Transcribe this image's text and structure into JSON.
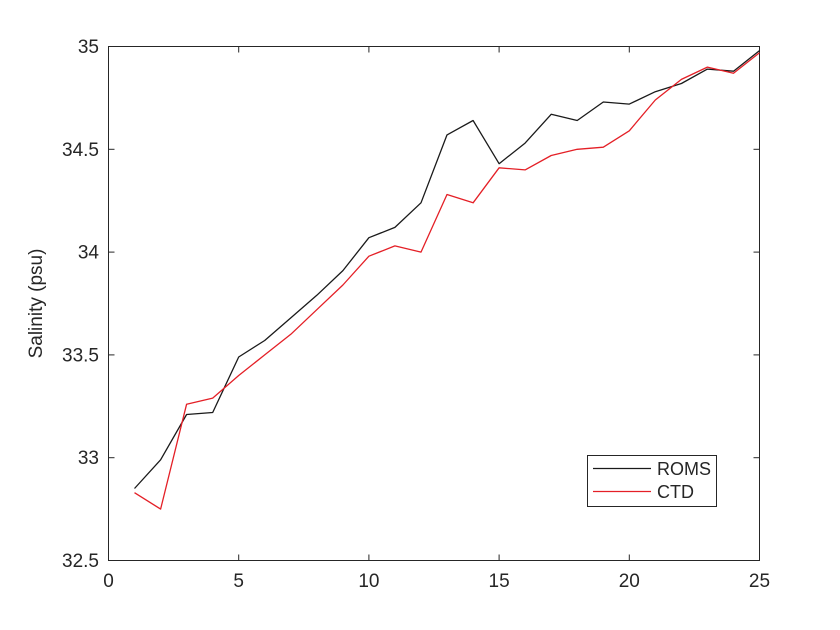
{
  "figure": {
    "background": "#ffffff"
  },
  "chart_data": {
    "type": "line",
    "title": "",
    "xlabel": "",
    "ylabel": "Salinity (psu)",
    "x": [
      1,
      2,
      3,
      4,
      5,
      6,
      7,
      8,
      9,
      10,
      11,
      12,
      13,
      14,
      15,
      16,
      17,
      18,
      19,
      20,
      21,
      22,
      23,
      24,
      25
    ],
    "series": [
      {
        "name": "ROMS",
        "color": "#1a1a1a",
        "values": [
          32.85,
          32.99,
          33.21,
          33.22,
          33.49,
          33.57,
          33.68,
          33.79,
          33.91,
          34.07,
          34.12,
          34.24,
          34.57,
          34.64,
          34.43,
          34.53,
          34.67,
          34.64,
          34.73,
          34.72,
          34.78,
          34.82,
          34.89,
          34.88,
          34.98
        ]
      },
      {
        "name": "CTD",
        "color": "#e41f26",
        "values": [
          32.83,
          32.75,
          33.26,
          33.29,
          33.4,
          33.5,
          33.6,
          33.72,
          33.84,
          33.98,
          34.03,
          34.0,
          34.28,
          34.24,
          34.41,
          34.4,
          34.47,
          34.5,
          34.51,
          34.59,
          34.74,
          34.84,
          34.9,
          34.87,
          34.97
        ]
      }
    ],
    "xlim": [
      0,
      25
    ],
    "ylim": [
      32.5,
      35
    ],
    "xticks": [
      0,
      5,
      10,
      15,
      20,
      25
    ],
    "xtick_labels": [
      "0",
      "5",
      "10",
      "15",
      "20",
      "25"
    ],
    "yticks": [
      32.5,
      33,
      33.5,
      34,
      34.5,
      35
    ],
    "ytick_labels": [
      "32.5",
      "33",
      "33.5",
      "34",
      "34.5",
      "35"
    ],
    "grid": false,
    "box": true,
    "tick_dir": "in",
    "legend": {
      "position": "lower-right-inside",
      "entries": [
        "ROMS",
        "CTD"
      ]
    },
    "colors": {
      "axis": "#262626",
      "text": "#262626",
      "legend_background": "#ffffff"
    }
  }
}
